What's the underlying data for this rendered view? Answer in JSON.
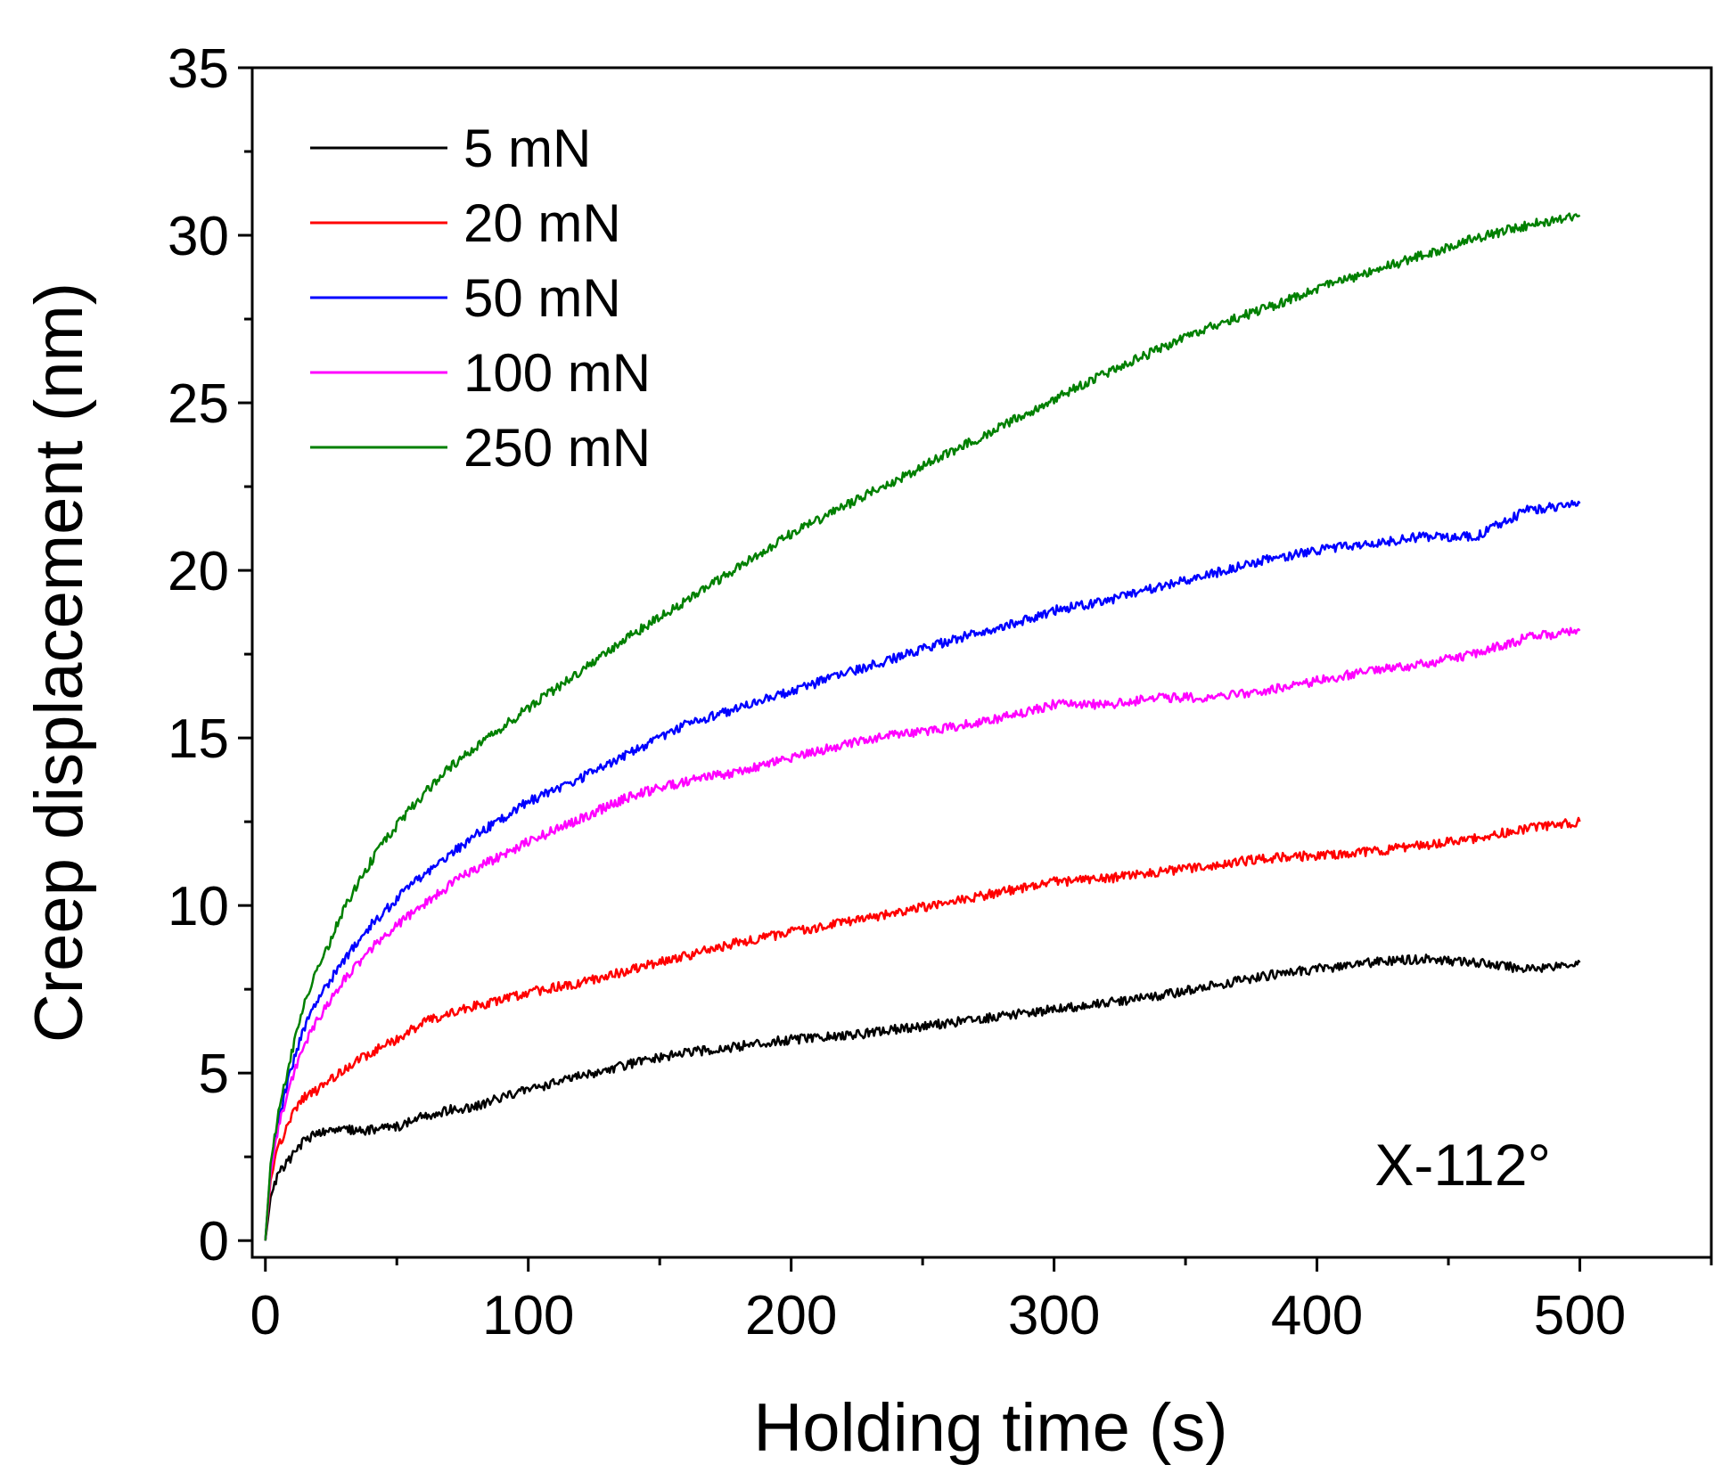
{
  "chart_data": {
    "type": "line",
    "title": "",
    "xlabel": "Holding time (s)",
    "ylabel": "Creep displacement (nm)",
    "xlim": [
      -5,
      550
    ],
    "ylim": [
      -0.5,
      35
    ],
    "xticks": [
      0,
      100,
      200,
      300,
      400,
      500
    ],
    "yticks": [
      0,
      5,
      10,
      15,
      20,
      25,
      30,
      35
    ],
    "x_minor_step": 50,
    "y_minor_step": 2.5,
    "grid": false,
    "legend_position": "top-left",
    "annotation": "X-112°",
    "x": [
      0,
      2,
      5,
      10,
      15,
      20,
      30,
      40,
      50,
      60,
      70,
      80,
      90,
      100,
      120,
      140,
      160,
      180,
      200,
      220,
      240,
      260,
      280,
      300,
      320,
      340,
      360,
      380,
      400,
      420,
      440,
      460,
      480,
      500
    ],
    "series": [
      {
        "name": "5 mN",
        "color": "#000000",
        "values": [
          0,
          1.3,
          2.0,
          2.5,
          3.0,
          3.2,
          3.3,
          3.3,
          3.4,
          3.7,
          3.9,
          4.0,
          4.3,
          4.5,
          4.9,
          5.3,
          5.6,
          5.8,
          6.0,
          6.1,
          6.3,
          6.5,
          6.7,
          6.9,
          7.1,
          7.3,
          7.6,
          7.9,
          8.1,
          8.3,
          8.4,
          8.3,
          8.1,
          8.3
        ]
      },
      {
        "name": "20 mN",
        "color": "#ff0000",
        "values": [
          0,
          1.8,
          2.8,
          3.7,
          4.3,
          4.5,
          5.1,
          5.6,
          6.0,
          6.5,
          6.8,
          7.0,
          7.2,
          7.4,
          7.7,
          8.1,
          8.5,
          8.9,
          9.2,
          9.5,
          9.8,
          10.1,
          10.4,
          10.7,
          10.8,
          11.0,
          11.2,
          11.4,
          11.5,
          11.6,
          11.8,
          12.0,
          12.3,
          12.5
        ]
      },
      {
        "name": "50 mN",
        "color": "#0000ff",
        "values": [
          0,
          2.2,
          3.6,
          5.2,
          6.4,
          7.2,
          8.4,
          9.4,
          10.2,
          10.9,
          11.5,
          12.1,
          12.6,
          13.1,
          13.8,
          14.6,
          15.4,
          15.9,
          16.4,
          16.9,
          17.4,
          17.9,
          18.3,
          18.8,
          19.1,
          19.5,
          19.9,
          20.3,
          20.6,
          20.8,
          21.0,
          21.0,
          21.8,
          22.0
        ]
      },
      {
        "name": "100 mN",
        "color": "#ff00ff",
        "values": [
          0,
          2.0,
          3.4,
          4.8,
          5.9,
          6.6,
          7.8,
          8.7,
          9.4,
          10.0,
          10.6,
          11.1,
          11.5,
          11.9,
          12.6,
          13.3,
          13.7,
          14.0,
          14.4,
          14.8,
          15.1,
          15.3,
          15.6,
          16.0,
          16.0,
          16.2,
          16.2,
          16.4,
          16.7,
          17.0,
          17.2,
          17.5,
          18.0,
          18.2
        ]
      },
      {
        "name": "250 mN",
        "color": "#008000",
        "values": [
          0,
          2.3,
          3.8,
          5.6,
          7.1,
          8.1,
          9.9,
          11.3,
          12.4,
          13.3,
          14.1,
          14.7,
          15.3,
          15.9,
          17.0,
          18.1,
          19.1,
          20.1,
          21.1,
          21.9,
          22.7,
          23.5,
          24.3,
          25.1,
          25.9,
          26.6,
          27.3,
          27.8,
          28.4,
          28.9,
          29.4,
          29.9,
          30.3,
          30.6
        ]
      }
    ]
  }
}
